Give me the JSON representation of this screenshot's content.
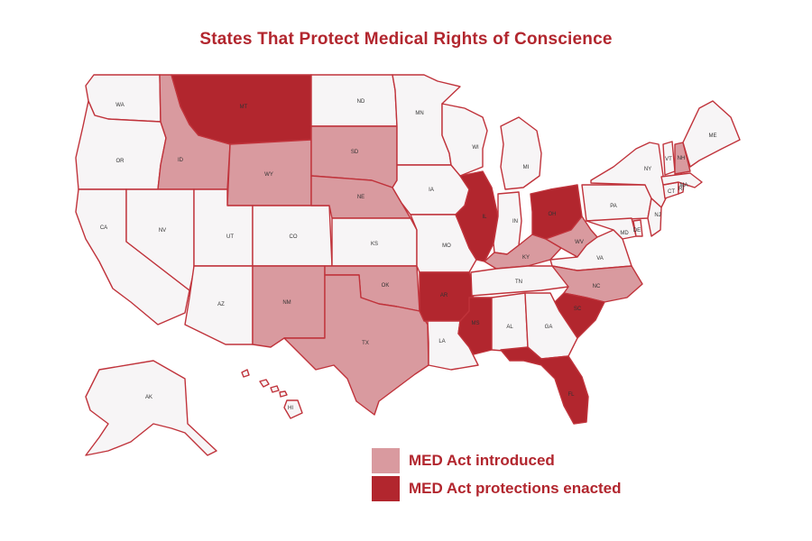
{
  "title": "States That Protect Medical Rights of Conscience",
  "colors": {
    "title": "#b2262e",
    "enacted": "#b2262e",
    "introduced": "#d99a9f",
    "none": "#f7f5f6",
    "border": "#c0333b"
  },
  "legend": [
    {
      "label": "MED Act introduced",
      "status": "introduced"
    },
    {
      "label": "MED Act protections enacted",
      "status": "enacted"
    }
  ],
  "states": [
    {
      "abbr": "WA",
      "status": "none"
    },
    {
      "abbr": "OR",
      "status": "none"
    },
    {
      "abbr": "CA",
      "status": "none"
    },
    {
      "abbr": "ID",
      "status": "introduced"
    },
    {
      "abbr": "NV",
      "status": "none"
    },
    {
      "abbr": "MT",
      "status": "enacted"
    },
    {
      "abbr": "WY",
      "status": "introduced"
    },
    {
      "abbr": "UT",
      "status": "none"
    },
    {
      "abbr": "AZ",
      "status": "none"
    },
    {
      "abbr": "CO",
      "status": "none"
    },
    {
      "abbr": "NM",
      "status": "introduced"
    },
    {
      "abbr": "ND",
      "status": "none"
    },
    {
      "abbr": "SD",
      "status": "introduced"
    },
    {
      "abbr": "NE",
      "status": "introduced"
    },
    {
      "abbr": "KS",
      "status": "none"
    },
    {
      "abbr": "OK",
      "status": "introduced"
    },
    {
      "abbr": "TX",
      "status": "introduced"
    },
    {
      "abbr": "MN",
      "status": "none"
    },
    {
      "abbr": "IA",
      "status": "none"
    },
    {
      "abbr": "MO",
      "status": "none"
    },
    {
      "abbr": "AR",
      "status": "enacted"
    },
    {
      "abbr": "LA",
      "status": "none"
    },
    {
      "abbr": "WI",
      "status": "none"
    },
    {
      "abbr": "IL",
      "status": "enacted"
    },
    {
      "abbr": "MS",
      "status": "enacted"
    },
    {
      "abbr": "MI",
      "status": "none"
    },
    {
      "abbr": "IN",
      "status": "none"
    },
    {
      "abbr": "KY",
      "status": "introduced"
    },
    {
      "abbr": "TN",
      "status": "none"
    },
    {
      "abbr": "AL",
      "status": "none"
    },
    {
      "abbr": "OH",
      "status": "enacted"
    },
    {
      "abbr": "WV",
      "status": "introduced"
    },
    {
      "abbr": "VA",
      "status": "none"
    },
    {
      "abbr": "NC",
      "status": "introduced"
    },
    {
      "abbr": "SC",
      "status": "enacted"
    },
    {
      "abbr": "GA",
      "status": "none"
    },
    {
      "abbr": "FL",
      "status": "enacted"
    },
    {
      "abbr": "PA",
      "status": "none"
    },
    {
      "abbr": "NY",
      "status": "none"
    },
    {
      "abbr": "MD",
      "status": "none"
    },
    {
      "abbr": "NJ",
      "status": "none"
    },
    {
      "abbr": "DE",
      "status": "none"
    },
    {
      "abbr": "CT",
      "status": "none"
    },
    {
      "abbr": "RI",
      "status": "none"
    },
    {
      "abbr": "MA",
      "status": "none"
    },
    {
      "abbr": "VT",
      "status": "none"
    },
    {
      "abbr": "NH",
      "status": "introduced"
    },
    {
      "abbr": "ME",
      "status": "none"
    },
    {
      "abbr": "AK",
      "status": "none"
    },
    {
      "abbr": "HI",
      "status": "none"
    }
  ]
}
